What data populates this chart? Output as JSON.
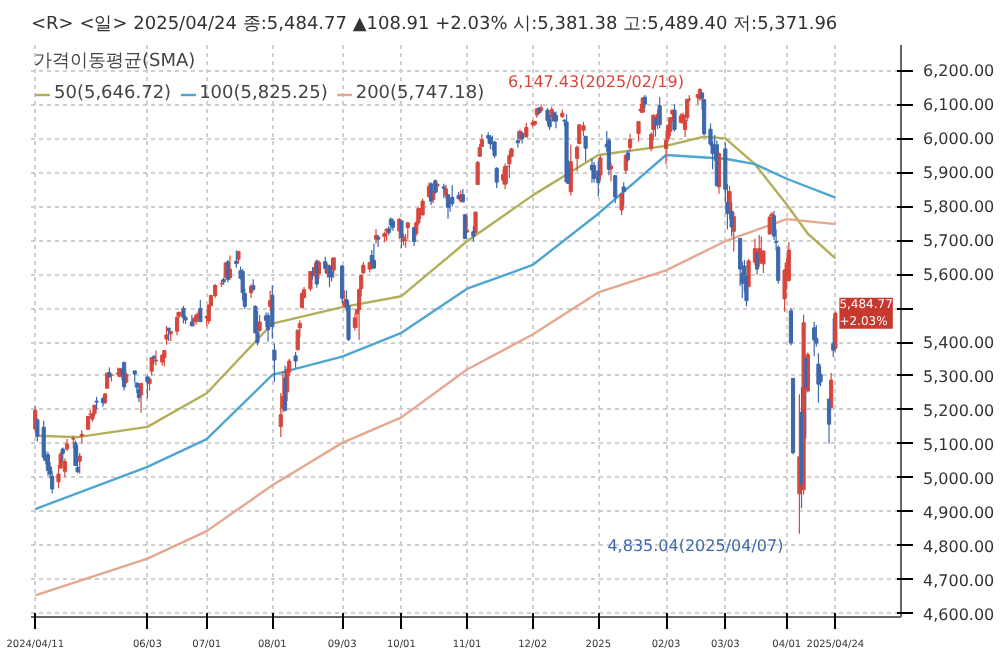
{
  "chart_data": {
    "type": "candlestick",
    "title": "<R> <일> 2025/04/24 종:5,484.77 ▲108.91 +2.03% 시:5,381.38 고:5,489.40 저:5,371.96",
    "legend_title": "가격이동평균(SMA)",
    "legend": "top left",
    "grid": true,
    "x": [
      "2024-04-11",
      "2024-04-12",
      "2024-04-15",
      "2024-04-16",
      "2024-04-17",
      "2024-04-18",
      "2024-04-19",
      "2024-04-22",
      "2024-04-23",
      "2024-04-24",
      "2024-04-25",
      "2024-04-26",
      "2024-04-29",
      "2024-04-30",
      "2024-05-01",
      "2024-05-02",
      "2024-05-03",
      "2024-05-06",
      "2024-05-07",
      "2024-05-08",
      "2024-05-09",
      "2024-05-10",
      "2024-05-13",
      "2024-05-14",
      "2024-05-15",
      "2024-05-16",
      "2024-05-17",
      "2024-05-20",
      "2024-05-21",
      "2024-05-22",
      "2024-05-23",
      "2024-05-24",
      "2024-05-28",
      "2024-05-29",
      "2024-05-30",
      "2024-05-31",
      "2024-06-03",
      "2024-06-04",
      "2024-06-05",
      "2024-06-06",
      "2024-06-07",
      "2024-06-10",
      "2024-06-11",
      "2024-06-12",
      "2024-06-13",
      "2024-06-14",
      "2024-06-17",
      "2024-06-18",
      "2024-06-20",
      "2024-06-21",
      "2024-06-24",
      "2024-06-25",
      "2024-06-26",
      "2024-06-27",
      "2024-06-28",
      "2024-07-01",
      "2024-07-02",
      "2024-07-03",
      "2024-07-05",
      "2024-07-08",
      "2024-07-09",
      "2024-07-10",
      "2024-07-11",
      "2024-07-12",
      "2024-07-15",
      "2024-07-16",
      "2024-07-17",
      "2024-07-18",
      "2024-07-19",
      "2024-07-22",
      "2024-07-23",
      "2024-07-24",
      "2024-07-25",
      "2024-07-26",
      "2024-07-29",
      "2024-07-30",
      "2024-07-31",
      "2024-08-01",
      "2024-08-02",
      "2024-08-05",
      "2024-08-06",
      "2024-08-07",
      "2024-08-08",
      "2024-08-09",
      "2024-08-12",
      "2024-08-13",
      "2024-08-14",
      "2024-08-15",
      "2024-08-16",
      "2024-08-19",
      "2024-08-20",
      "2024-08-21",
      "2024-08-22",
      "2024-08-23",
      "2024-08-26",
      "2024-08-27",
      "2024-08-28",
      "2024-08-29",
      "2024-08-30",
      "2024-09-03",
      "2024-09-04",
      "2024-09-05",
      "2024-09-06",
      "2024-09-09",
      "2024-09-10",
      "2024-09-11",
      "2024-09-12",
      "2024-09-13",
      "2024-09-16",
      "2024-09-17",
      "2024-09-18",
      "2024-09-19",
      "2024-09-20",
      "2024-09-23",
      "2024-09-24",
      "2024-09-25",
      "2024-09-26",
      "2024-09-27",
      "2024-09-30",
      "2024-10-01",
      "2024-10-02",
      "2024-10-03",
      "2024-10-04",
      "2024-10-07",
      "2024-10-08",
      "2024-10-09",
      "2024-10-10",
      "2024-10-11",
      "2024-10-14",
      "2024-10-15",
      "2024-10-16",
      "2024-10-17",
      "2024-10-18",
      "2024-10-21",
      "2024-10-22",
      "2024-10-23",
      "2024-10-24",
      "2024-10-25",
      "2024-10-28",
      "2024-10-29",
      "2024-10-30",
      "2024-10-31",
      "2024-11-01",
      "2024-11-04",
      "2024-11-05",
      "2024-11-06",
      "2024-11-07",
      "2024-11-08",
      "2024-11-11",
      "2024-11-12",
      "2024-11-13",
      "2024-11-14",
      "2024-11-15",
      "2024-11-18",
      "2024-11-19",
      "2024-11-20",
      "2024-11-21",
      "2024-11-22",
      "2024-11-25",
      "2024-11-26",
      "2024-11-27",
      "2024-11-29",
      "2024-12-02",
      "2024-12-03",
      "2024-12-04",
      "2024-12-05",
      "2024-12-06",
      "2024-12-09",
      "2024-12-10",
      "2024-12-11",
      "2024-12-12",
      "2024-12-13",
      "2024-12-16",
      "2024-12-17",
      "2024-12-18",
      "2024-12-19",
      "2024-12-20",
      "2024-12-23",
      "2024-12-24",
      "2024-12-26",
      "2024-12-27",
      "2024-12-30",
      "2024-12-31",
      "2025-01-02",
      "2025-01-03",
      "2025-01-06",
      "2025-01-07",
      "2025-01-08",
      "2025-01-10",
      "2025-01-13",
      "2025-01-14",
      "2025-01-15",
      "2025-01-16",
      "2025-01-17",
      "2025-01-21",
      "2025-01-22",
      "2025-01-23",
      "2025-01-24",
      "2025-01-27",
      "2025-01-28",
      "2025-01-29",
      "2025-01-30",
      "2025-01-31",
      "2025-02-03",
      "2025-02-04",
      "2025-02-05",
      "2025-02-06",
      "2025-02-07",
      "2025-02-10",
      "2025-02-11",
      "2025-02-12",
      "2025-02-13",
      "2025-02-14",
      "2025-02-18",
      "2025-02-19",
      "2025-02-20",
      "2025-02-21",
      "2025-02-24",
      "2025-02-25",
      "2025-02-26",
      "2025-02-27",
      "2025-02-28",
      "2025-03-03",
      "2025-03-04",
      "2025-03-05",
      "2025-03-06",
      "2025-03-07",
      "2025-03-10",
      "2025-03-11",
      "2025-03-12",
      "2025-03-13",
      "2025-03-14",
      "2025-03-17",
      "2025-03-18",
      "2025-03-19",
      "2025-03-20",
      "2025-03-21",
      "2025-03-24",
      "2025-03-25",
      "2025-03-26",
      "2025-03-27",
      "2025-03-28",
      "2025-03-31",
      "2025-04-01",
      "2025-04-02",
      "2025-04-03",
      "2025-04-04",
      "2025-04-07",
      "2025-04-08",
      "2025-04-09",
      "2025-04-10",
      "2025-04-11",
      "2025-04-14",
      "2025-04-15",
      "2025-04-16",
      "2025-04-17",
      "2025-04-21",
      "2025-04-22",
      "2025-04-23",
      "2025-04-24"
    ],
    "ohlc": [
      [
        5144,
        5211,
        5138,
        5199
      ],
      [
        5171,
        5175,
        5107,
        5123
      ],
      [
        5149,
        5168,
        5052,
        5061
      ],
      [
        5064,
        5079,
        5039,
        5051
      ],
      [
        5068,
        5077,
        5007,
        5022
      ],
      [
        5032,
        5046,
        4999,
        5011
      ],
      [
        5005,
        5019,
        4954,
        4967
      ],
      [
        4988,
        5038,
        4969,
        5011
      ],
      [
        5029,
        5076,
        5027,
        5070
      ],
      [
        5085,
        5089,
        5047,
        5072
      ],
      [
        5019,
        5057,
        5002,
        5048
      ],
      [
        5085,
        5114,
        5079,
        5100
      ],
      [
        5114,
        5124,
        5086,
        5116
      ],
      [
        5103,
        5110,
        5035,
        5036
      ],
      [
        5030,
        5096,
        5014,
        5018
      ],
      [
        5049,
        5073,
        5012,
        5064
      ],
      [
        5123,
        5140,
        5101,
        5128
      ],
      [
        5143,
        5181,
        5143,
        5181
      ],
      [
        5187,
        5200,
        5178,
        5187
      ],
      [
        5173,
        5191,
        5165,
        5188
      ],
      [
        5189,
        5215,
        5181,
        5214
      ],
      [
        5226,
        5239,
        5202,
        5223
      ],
      [
        5233,
        5238,
        5209,
        5221
      ],
      [
        5221,
        5250,
        5218,
        5247
      ],
      [
        5264,
        5311,
        5264,
        5308
      ],
      [
        5310,
        5325,
        5296,
        5297
      ],
      [
        5303,
        5306,
        5284,
        5303
      ],
      [
        5306,
        5325,
        5299,
        5308
      ],
      [
        5298,
        5324,
        5298,
        5321
      ],
      [
        5319,
        5324,
        5287,
        5307
      ],
      [
        5340,
        5342,
        5257,
        5268
      ],
      [
        5282,
        5311,
        5278,
        5305
      ],
      [
        5315,
        5315,
        5280,
        5306
      ],
      [
        5279,
        5281,
        5250,
        5267
      ],
      [
        5260,
        5276,
        5223,
        5236
      ],
      [
        5244,
        5280,
        5192,
        5278
      ],
      [
        5297,
        5302,
        5234,
        5283
      ],
      [
        5278,
        5298,
        5257,
        5291
      ],
      [
        5314,
        5354,
        5302,
        5354
      ],
      [
        5357,
        5362,
        5335,
        5352
      ],
      [
        5344,
        5375,
        5331,
        5347
      ],
      [
        5341,
        5365,
        5331,
        5361
      ],
      [
        5354,
        5376,
        5329,
        5375
      ],
      [
        5409,
        5448,
        5392,
        5421
      ],
      [
        5441,
        5441,
        5403,
        5434
      ],
      [
        5424,
        5432,
        5403,
        5431
      ],
      [
        5432,
        5488,
        5420,
        5473
      ],
      [
        5477,
        5490,
        5471,
        5487
      ],
      [
        5499,
        5506,
        5455,
        5473
      ],
      [
        5472,
        5478,
        5453,
        5465
      ],
      [
        5459,
        5480,
        5446,
        5448
      ],
      [
        5461,
        5472,
        5446,
        5469
      ],
      [
        5460,
        5483,
        5451,
        5478
      ],
      [
        5473,
        5491,
        5470,
        5483
      ],
      [
        5499,
        5524,
        5459,
        5460
      ],
      [
        5471,
        5479,
        5446,
        5475
      ],
      [
        5462,
        5510,
        5453,
        5509
      ],
      [
        5507,
        5539,
        5507,
        5537
      ],
      [
        5537,
        5570,
        5530,
        5567
      ],
      [
        5572,
        5583,
        5562,
        5572
      ],
      [
        5584,
        5590,
        5569,
        5577
      ],
      [
        5591,
        5635,
        5587,
        5633
      ],
      [
        5636,
        5642,
        5576,
        5585
      ],
      [
        5590,
        5655,
        5583,
        5615
      ],
      [
        5638,
        5670,
        5619,
        5631
      ],
      [
        5644,
        5667,
        5632,
        5667
      ],
      [
        5610,
        5622,
        5584,
        5588
      ],
      [
        5608,
        5615,
        5522,
        5545
      ],
      [
        5543,
        5557,
        5497,
        5505
      ],
      [
        5545,
        5570,
        5530,
        5564
      ],
      [
        5566,
        5585,
        5551,
        5555
      ],
      [
        5505,
        5508,
        5425,
        5427
      ],
      [
        5429,
        5491,
        5390,
        5399
      ],
      [
        5434,
        5480,
        5430,
        5459
      ],
      [
        5477,
        5487,
        5444,
        5464
      ],
      [
        5478,
        5486,
        5401,
        5436
      ],
      [
        5505,
        5551,
        5492,
        5522
      ],
      [
        5537,
        5567,
        5410,
        5446
      ],
      [
        5376,
        5396,
        5283,
        5347
      ],
      [
        5151,
        5250,
        5120,
        5186
      ],
      [
        5206,
        5313,
        5193,
        5240
      ],
      [
        5294,
        5330,
        5195,
        5199
      ],
      [
        5253,
        5327,
        5226,
        5319
      ],
      [
        5311,
        5351,
        5300,
        5344
      ],
      [
        5359,
        5371,
        5324,
        5344
      ],
      [
        5377,
        5436,
        5377,
        5435
      ],
      [
        5442,
        5464,
        5413,
        5455
      ],
      [
        5501,
        5546,
        5501,
        5543
      ],
      [
        5531,
        5562,
        5528,
        5554
      ],
      [
        5557,
        5608,
        5550,
        5608
      ],
      [
        5603,
        5620,
        5584,
        5597
      ],
      [
        5603,
        5633,
        5591,
        5620
      ],
      [
        5638,
        5643,
        5560,
        5571
      ],
      [
        5602,
        5641,
        5585,
        5635
      ],
      [
        5637,
        5651,
        5603,
        5617
      ],
      [
        5602,
        5631,
        5590,
        5626
      ],
      [
        5624,
        5628,
        5561,
        5592
      ],
      [
        5607,
        5647,
        5578,
        5592
      ],
      [
        5612,
        5648,
        5589,
        5648
      ],
      [
        5624,
        5627,
        5515,
        5529
      ],
      [
        5507,
        5552,
        5503,
        5520
      ],
      [
        5525,
        5552,
        5490,
        5503
      ],
      [
        5507,
        5522,
        5403,
        5408
      ],
      [
        5443,
        5484,
        5434,
        5471
      ],
      [
        5483,
        5497,
        5441,
        5496
      ],
      [
        5496,
        5560,
        5406,
        5554
      ],
      [
        5557,
        5600,
        5535,
        5596
      ],
      [
        5604,
        5636,
        5600,
        5626
      ],
      [
        5615,
        5636,
        5605,
        5634
      ],
      [
        5655,
        5671,
        5614,
        5635
      ],
      [
        5641,
        5690,
        5615,
        5618
      ],
      [
        5703,
        5733,
        5690,
        5714
      ],
      [
        5709,
        5716,
        5680,
        5703
      ],
      [
        5711,
        5725,
        5694,
        5719
      ],
      [
        5727,
        5735,
        5698,
        5732
      ],
      [
        5733,
        5742,
        5714,
        5722
      ],
      [
        5762,
        5767,
        5729,
        5745
      ],
      [
        5756,
        5764,
        5728,
        5738
      ],
      [
        5727,
        5765,
        5703,
        5762
      ],
      [
        5757,
        5757,
        5677,
        5709
      ],
      [
        5698,
        5719,
        5684,
        5710
      ],
      [
        5700,
        5718,
        5678,
        5700
      ],
      [
        5737,
        5753,
        5703,
        5751
      ],
      [
        5737,
        5739,
        5683,
        5696
      ],
      [
        5719,
        5757,
        5714,
        5751
      ],
      [
        5751,
        5796,
        5745,
        5793
      ],
      [
        5779,
        5795,
        5763,
        5780
      ],
      [
        5775,
        5822,
        5772,
        5815
      ],
      [
        5829,
        5871,
        5824,
        5859
      ],
      [
        5866,
        5870,
        5804,
        5815
      ],
      [
        5820,
        5843,
        5809,
        5843
      ],
      [
        5875,
        5879,
        5837,
        5841
      ],
      [
        5860,
        5866,
        5843,
        5865
      ],
      [
        5857,
        5866,
        5824,
        5853
      ],
      [
        5833,
        5863,
        5822,
        5851
      ],
      [
        5834,
        5835,
        5763,
        5797
      ],
      [
        5817,
        5817,
        5784,
        5809
      ],
      [
        5826,
        5862,
        5799,
        5808
      ],
      [
        5831,
        5842,
        5820,
        5823
      ],
      [
        5816,
        5847,
        5811,
        5833
      ],
      [
        5834,
        5851,
        5812,
        5813
      ],
      [
        5775,
        5776,
        5703,
        5705
      ],
      [
        5724,
        5772,
        5723,
        5729
      ],
      [
        5725,
        5741,
        5696,
        5712
      ],
      [
        5722,
        5783,
        5722,
        5783
      ],
      [
        5864,
        5933,
        5864,
        5929
      ],
      [
        5947,
        5983,
        5947,
        5973
      ],
      [
        5976,
        6012,
        5976,
        5996
      ],
      [
        6008,
        6018,
        5985,
        6001
      ],
      [
        6003,
        6010,
        5969,
        5984
      ],
      [
        5986,
        6008,
        5965,
        5985
      ],
      [
        5989,
        5993,
        5942,
        5949
      ],
      [
        5912,
        5915,
        5854,
        5871
      ],
      [
        5877,
        5909,
        5865,
        5893
      ],
      [
        5865,
        5926,
        5850,
        5917
      ],
      [
        5917,
        5920,
        5866,
        5917
      ],
      [
        5925,
        5963,
        5883,
        5949
      ],
      [
        5947,
        5972,
        5944,
        5969
      ],
      [
        5993,
        6021,
        5973,
        5987
      ],
      [
        6000,
        6026,
        5992,
        6021
      ],
      [
        6015,
        6020,
        5985,
        5999
      ],
      [
        6004,
        6045,
        6004,
        6032
      ],
      [
        6040,
        6053,
        6034,
        6047
      ],
      [
        6042,
        6051,
        6036,
        6050
      ],
      [
        6069,
        6089,
        6061,
        6087
      ],
      [
        6089,
        6092,
        6072,
        6075
      ],
      [
        6082,
        6100,
        6076,
        6090
      ],
      [
        6083,
        6089,
        6041,
        6053
      ],
      [
        6057,
        6068,
        6025,
        6034
      ],
      [
        6060,
        6093,
        6060,
        6085
      ],
      [
        6075,
        6079,
        6051,
        6051
      ],
      [
        6068,
        6079,
        6030,
        6051
      ],
      [
        6064,
        6085,
        6060,
        6074
      ],
      [
        6053,
        6057,
        6036,
        6051
      ],
      [
        6048,
        6071,
        5867,
        5872
      ],
      [
        5913,
        5935,
        5866,
        5867
      ],
      [
        5843,
        5982,
        5832,
        5931
      ],
      [
        5941,
        5979,
        5903,
        5974
      ],
      [
        5985,
        6040,
        5982,
        6040
      ],
      [
        6024,
        6049,
        6007,
        6037
      ],
      [
        6006,
        6006,
        5932,
        5971
      ],
      [
        5921,
        5941,
        5869,
        5907
      ],
      [
        5920,
        5930,
        5870,
        5882
      ],
      [
        5904,
        5935,
        5829,
        5869
      ],
      [
        5892,
        5950,
        5877,
        5942
      ],
      [
        5983,
        6022,
        5961,
        5975
      ],
      [
        5994,
        6000,
        5891,
        5909
      ],
      [
        5910,
        5927,
        5874,
        5918
      ],
      [
        5890,
        5891,
        5809,
        5827
      ],
      [
        5789,
        5838,
        5774,
        5836
      ],
      [
        5857,
        5871,
        5802,
        5843
      ],
      [
        5906,
        5952,
        5895,
        5950
      ],
      [
        5957,
        5965,
        5931,
        5937
      ],
      [
        5973,
        6013,
        5961,
        5997
      ],
      [
        6014,
        6051,
        5990,
        6049
      ],
      [
        6081,
        6101,
        6075,
        6086
      ],
      [
        6077,
        6119,
        6076,
        6119
      ],
      [
        6121,
        6128,
        6089,
        6101
      ],
      [
        5970,
        6018,
        5962,
        6012
      ],
      [
        6026,
        6070,
        5995,
        6068
      ],
      [
        6058,
        6063,
        6005,
        6039
      ],
      [
        6058,
        6086,
        6027,
        6071
      ],
      [
        6096,
        6121,
        6030,
        6041
      ],
      [
        5970,
        6022,
        5923,
        5994
      ],
      [
        5998,
        6042,
        5991,
        6038
      ],
      [
        6020,
        6062,
        6008,
        6061
      ],
      [
        6072,
        6084,
        6051,
        6083
      ],
      [
        6083,
        6101,
        6020,
        6026
      ],
      [
        6047,
        6074,
        6044,
        6066
      ],
      [
        6049,
        6076,
        6042,
        6069
      ],
      [
        6026,
        6064,
        6004,
        6052
      ],
      [
        6061,
        6116,
        6051,
        6115
      ],
      [
        6115,
        6127,
        6108,
        6115
      ],
      [
        6121,
        6129,
        6100,
        6129
      ],
      [
        6117,
        6147.43,
        6111,
        6144
      ],
      [
        6134,
        6134,
        6084,
        6118
      ],
      [
        6114,
        6114,
        6009,
        6013
      ],
      [
        6027,
        6044,
        5977,
        5983
      ],
      [
        5983,
        5993,
        5909,
        5955
      ],
      [
        5971,
        6010,
        5933,
        5956
      ],
      [
        5981,
        5994,
        5858,
        5861
      ],
      [
        5857,
        5959,
        5837,
        5955
      ],
      [
        5969,
        5987,
        5810,
        5850
      ],
      [
        5811,
        5865,
        5732,
        5779
      ],
      [
        5781,
        5860,
        5762,
        5843
      ],
      [
        5785,
        5812,
        5711,
        5739
      ],
      [
        5726,
        5783,
        5667,
        5770
      ],
      [
        5705,
        5706,
        5565,
        5615
      ],
      [
        5603,
        5636,
        5529,
        5573
      ],
      [
        5624,
        5642,
        5546,
        5599
      ],
      [
        5594,
        5598,
        5505,
        5522
      ],
      [
        5563,
        5645,
        5563,
        5639
      ],
      [
        5635,
        5704,
        5628,
        5675
      ],
      [
        5662,
        5663,
        5598,
        5615
      ],
      [
        5632,
        5715,
        5622,
        5675
      ],
      [
        5646,
        5711,
        5632,
        5663
      ],
      [
        5630,
        5670,
        5603,
        5668
      ],
      [
        5718,
        5775,
        5718,
        5768
      ],
      [
        5772,
        5783,
        5760,
        5777
      ],
      [
        5772,
        5786,
        5700,
        5712
      ],
      [
        5696,
        5732,
        5670,
        5693
      ],
      [
        5679,
        5685,
        5572,
        5581
      ],
      [
        5527,
        5615,
        5489,
        5612
      ],
      [
        5597,
        5650,
        5558,
        5633
      ],
      [
        5581,
        5695,
        5578,
        5671
      ],
      [
        5492,
        5500,
        5390,
        5397
      ],
      [
        5293,
        5293,
        5069,
        5074
      ],
      [
        4953,
        5246,
        4835.04,
        5062
      ],
      [
        5193,
        5267,
        4910,
        4982
      ],
      [
        4965,
        5481,
        4950,
        5457
      ],
      [
        5353,
        5353,
        5115,
        5268
      ],
      [
        5256,
        5369,
        5251,
        5363
      ],
      [
        5442,
        5459,
        5359,
        5406
      ],
      [
        5411,
        5450,
        5386,
        5397
      ],
      [
        5335,
        5367,
        5221,
        5276
      ],
      [
        5305,
        5329,
        5269,
        5283
      ],
      [
        5232,
        5232,
        5101,
        5158
      ],
      [
        5207,
        5309,
        5207,
        5288
      ],
      [
        5395,
        5469,
        5356,
        5376
      ],
      [
        5381.38,
        5489.4,
        5371.96,
        5484.77
      ]
    ],
    "series": [
      {
        "type": "line",
        "name": "50(5,646.72)",
        "color": "#b2ae5a",
        "x": [
          "2024-04-11",
          "2024-05-01",
          "2024-06-03",
          "2024-07-01",
          "2024-08-01",
          "2024-09-03",
          "2024-10-01",
          "2024-11-01",
          "2024-12-02",
          "2025-01-02",
          "2025-02-03",
          "2025-02-21",
          "2025-03-03",
          "2025-03-17",
          "2025-04-01",
          "2025-04-11",
          "2025-04-24"
        ],
        "values": [
          5124,
          5120,
          5150,
          5249,
          5454,
          5503,
          5535,
          5697,
          5832,
          5951,
          5978,
          6005,
          6000,
          5924,
          5805,
          5719,
          5646.72
        ]
      },
      {
        "type": "line",
        "name": "100(5,825.25)",
        "color": "#4ea5d0",
        "x": [
          "2024-04-11",
          "2024-06-03",
          "2024-07-01",
          "2024-08-01",
          "2024-09-03",
          "2024-10-01",
          "2024-11-01",
          "2024-12-02",
          "2025-01-02",
          "2025-02-03",
          "2025-03-03",
          "2025-03-17",
          "2025-04-01",
          "2025-04-24"
        ],
        "values": [
          4908,
          5032,
          5114,
          5303,
          5357,
          5427,
          5557,
          5627,
          5778,
          5951,
          5940,
          5924,
          5881,
          5825.25
        ]
      },
      {
        "type": "line",
        "name": "200(5,747.18)",
        "color": "#e5a88f",
        "x": [
          "2024-04-11",
          "2024-06-03",
          "2024-07-01",
          "2024-08-01",
          "2024-09-03",
          "2024-10-01",
          "2024-11-01",
          "2024-12-02",
          "2025-01-02",
          "2025-02-03",
          "2025-03-03",
          "2025-04-01",
          "2025-04-24"
        ],
        "values": [
          4654,
          4762,
          4843,
          4978,
          5103,
          5178,
          5319,
          5422,
          5546,
          5611,
          5697,
          5762,
          5747.18
        ]
      }
    ],
    "xlim": [
      "2024-04-09",
      "2025-05-25"
    ],
    "xticks": [
      {
        "value": "2024-04-11",
        "label": "2024/04/11"
      },
      {
        "value": "2024-06-03",
        "label": "06/03"
      },
      {
        "value": "2024-07-01",
        "label": "07/01"
      },
      {
        "value": "2024-08-01",
        "label": "08/01"
      },
      {
        "value": "2024-09-03",
        "label": "09/03"
      },
      {
        "value": "2024-10-01",
        "label": "10/01"
      },
      {
        "value": "2024-11-01",
        "label": "11/01"
      },
      {
        "value": "2024-12-02",
        "label": "12/02"
      },
      {
        "value": "2025-01-02",
        "label": "2025"
      },
      {
        "value": "2025-02-03",
        "label": "02/03"
      },
      {
        "value": "2025-03-03",
        "label": "03/03"
      },
      {
        "value": "2025-04-01",
        "label": "04/01"
      },
      {
        "value": "2025-04-24",
        "label": "2025/04/24"
      }
    ],
    "ylim": [
      4590,
      6275
    ],
    "yticks": [
      {
        "value": 4600,
        "label": "4,600.00"
      },
      {
        "value": 4700,
        "label": "4,700.00"
      },
      {
        "value": 4800,
        "label": "4,800.00"
      },
      {
        "value": 4900,
        "label": "4,900.00"
      },
      {
        "value": 5000,
        "label": "5,000.00"
      },
      {
        "value": 5100,
        "label": "5,100.00"
      },
      {
        "value": 5200,
        "label": "5,200.00"
      },
      {
        "value": 5300,
        "label": "5,300.00"
      },
      {
        "value": 5400,
        "label": "5,400.00"
      },
      {
        "value": 5500,
        "label": null
      },
      {
        "value": 5600,
        "label": "5,600.00"
      },
      {
        "value": 5700,
        "label": "5,700.00"
      },
      {
        "value": 5800,
        "label": "5,800.00"
      },
      {
        "value": 5900,
        "label": "5,900.00"
      },
      {
        "value": 6000,
        "label": "6,000.00"
      },
      {
        "value": 6100,
        "label": "6,100.00"
      },
      {
        "value": 6200,
        "label": "6,200.00"
      }
    ],
    "annotations": [
      {
        "text": "6,147.43(2025/02/19)",
        "x": "2025-02-19",
        "y": 6147.43
      },
      {
        "text": "4,835.04(2025/04/07)",
        "x": "2025-04-07",
        "y": 4835.04
      },
      {
        "text": "5,484.77 +2.03%",
        "x": "2025-04-24",
        "y": 5484.77
      }
    ]
  }
}
